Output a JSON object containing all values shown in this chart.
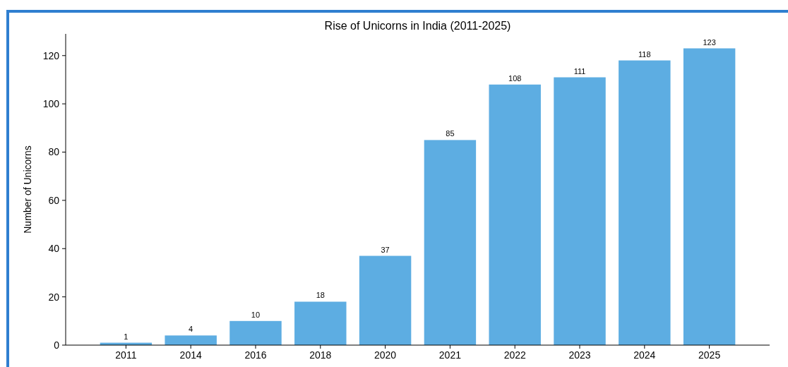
{
  "chart_data": {
    "type": "bar",
    "title": "Rise of Unicorns in India (2011-2025)",
    "ylabel": "Number of Unicorns",
    "categories": [
      "2011",
      "2014",
      "2016",
      "2018",
      "2020",
      "2021",
      "2022",
      "2023",
      "2024",
      "2025"
    ],
    "values": [
      1,
      4,
      10,
      18,
      37,
      85,
      108,
      111,
      118,
      123
    ],
    "color": "#5dade2",
    "ylim": [
      0,
      129
    ],
    "yticks": [
      0,
      20,
      40,
      60,
      80,
      100,
      120
    ],
    "data_labels": true,
    "grid": false
  }
}
